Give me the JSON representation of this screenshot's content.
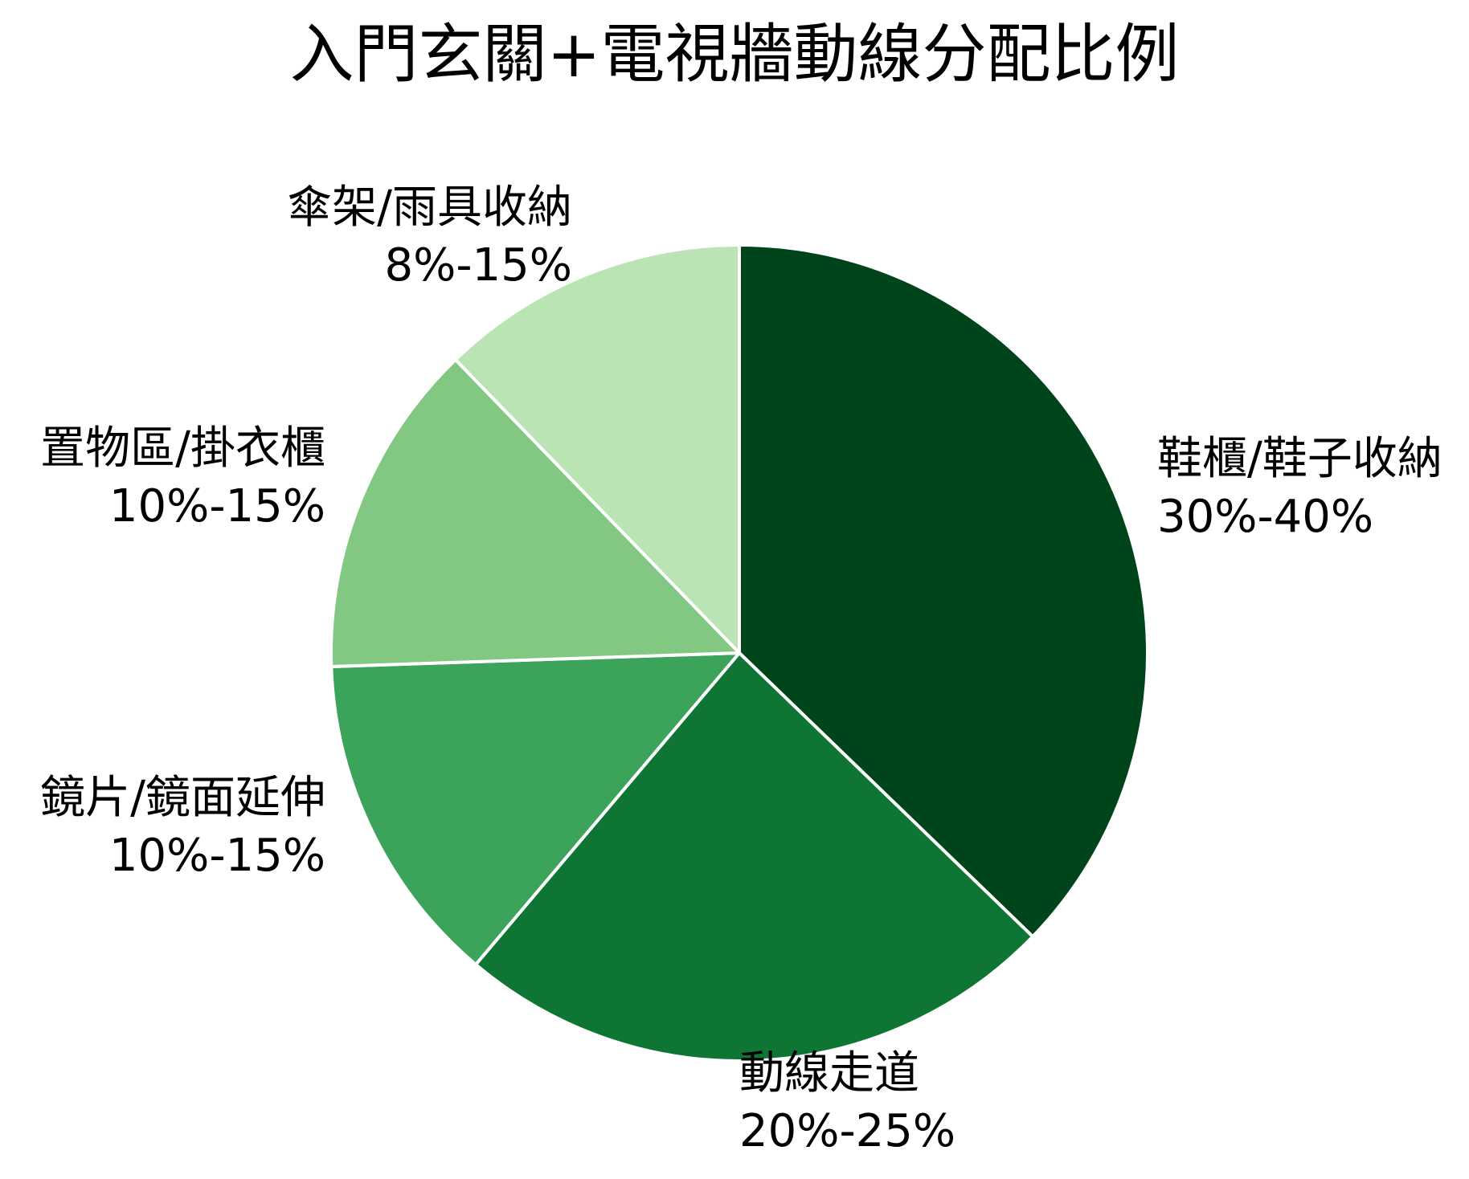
{
  "chart_data": {
    "type": "pie",
    "title": "入門玄關+電視牆動線分配比例",
    "start_angle": "12 o'clock",
    "direction": "clockwise",
    "slices": [
      {
        "label": "鞋櫃/鞋子收納",
        "range_text": "30%-40%",
        "value": 35,
        "color": "#00441b"
      },
      {
        "label": "動線走道",
        "range_text": "20%-25%",
        "value": 22.5,
        "color": "#0f7534"
      },
      {
        "label": "鏡片/鏡面延伸",
        "range_text": "10%-15%",
        "value": 12.5,
        "color": "#3ca35a"
      },
      {
        "label": "置物區/掛衣櫃",
        "range_text": "10%-15%",
        "value": 12.5,
        "color": "#82c883"
      },
      {
        "label": "傘架/雨具收納",
        "range_text": "8%-15%",
        "value": 11.5,
        "color": "#bae4b3"
      }
    ]
  }
}
